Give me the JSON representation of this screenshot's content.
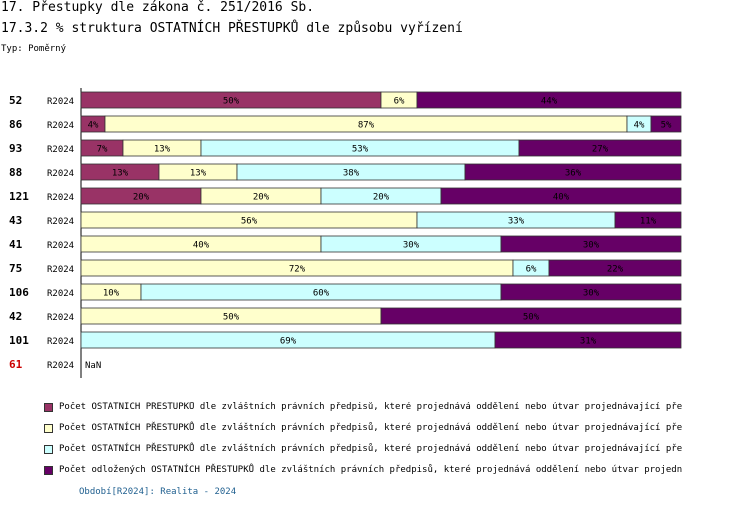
{
  "header": {
    "title": "17. Přestupky dle zákona č. 251/2016 Sb.",
    "subtitle": "17.3.2 % struktura OSTATNÍCH PŘESTUPKŮ dle způsobu vyřízení",
    "type_label": "Typ: Poměrný"
  },
  "chart_data": {
    "type": "bar",
    "orientation": "horizontal",
    "stacked": true,
    "percent_stacked": true,
    "title": "17.3.2 % struktura OSTATNÍCH PŘESTUPKŮ dle způsobu vyřízení",
    "period_label": "R2024",
    "categories": [
      "52",
      "86",
      "93",
      "88",
      "121",
      "43",
      "41",
      "75",
      "106",
      "42",
      "101",
      "61"
    ],
    "highlight_category": "61",
    "missing_label": "NaN",
    "xlim": [
      0,
      100
    ],
    "series": [
      {
        "name": "Počet OSTATNÍCH PŘESTUPKŮ dle zvláštních právních předpisů, které projednává oddělení nebo útvar projednávající pře",
        "color": "#993366",
        "values": [
          50,
          4,
          7,
          13,
          20,
          0,
          0,
          0,
          0,
          0,
          0,
          null
        ]
      },
      {
        "name": "Počet OSTATNÍCH PŘESTUPKŮ dle zvláštních právních předpisů, které projednává oddělení nebo útvar projednávající pře",
        "color": "#ffffcc",
        "values": [
          6,
          87,
          13,
          13,
          20,
          56,
          40,
          72,
          10,
          50,
          0,
          null
        ]
      },
      {
        "name": "Počet OSTATNÍCH PŘESTUPKŮ dle zvláštních právních předpisů, které projednává oddělení nebo útvar projednávající pře",
        "color": "#ccffff",
        "values": [
          0,
          4,
          53,
          38,
          20,
          33,
          30,
          6,
          60,
          0,
          69,
          null
        ]
      },
      {
        "name": "Počet odložených OSTATNÍCH PŘESTUPKŮ dle zvláštních právních předpisů, které projednává oddělení nebo útvar projedn",
        "color": "#660066",
        "values": [
          44,
          5,
          27,
          36,
          40,
          11,
          30,
          22,
          30,
          50,
          31,
          null
        ]
      }
    ]
  },
  "footer": {
    "text": "Období[R2024]: Realita - 2024"
  },
  "colors": {
    "highlight": "#cc0000",
    "footer": "#1f5f8f"
  }
}
